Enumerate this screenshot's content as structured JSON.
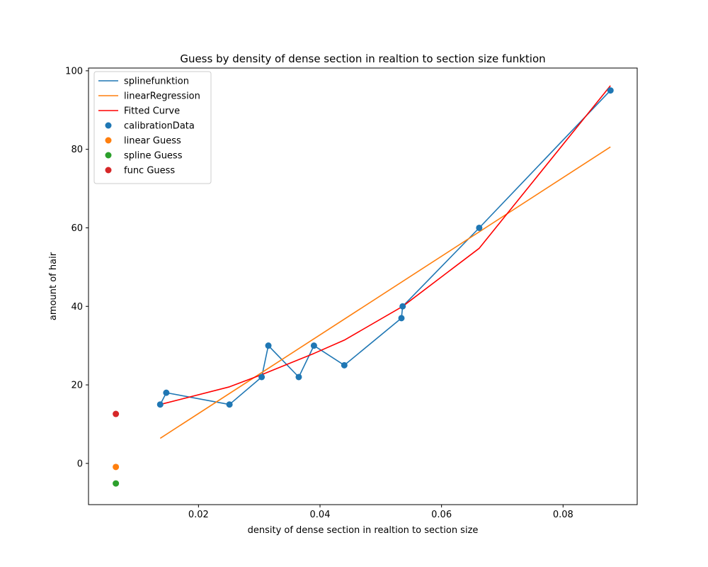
{
  "chart_data": {
    "type": "line",
    "title": "Guess by density of dense section in realtion to section size funktion",
    "xlabel": "density of dense section in realtion to section size",
    "ylabel": "amount of hair",
    "xlim": [
      0.0019,
      0.0922
    ],
    "ylim": [
      -10.5,
      100.7
    ],
    "xticks": [
      0.02,
      0.04,
      0.06,
      0.08
    ],
    "xtick_labels": [
      "0.02",
      "0.04",
      "0.06",
      "0.08"
    ],
    "yticks": [
      0,
      20,
      40,
      60,
      80,
      100
    ],
    "ytick_labels": [
      "0",
      "20",
      "40",
      "60",
      "80",
      "100"
    ],
    "grid": false,
    "legend_position": "top-left",
    "series": [
      {
        "name": "splinefunktion",
        "kind": "line",
        "color": "#1f77b4",
        "x": [
          0.0137,
          0.0147,
          0.0251,
          0.0304,
          0.0315,
          0.0365,
          0.039,
          0.044,
          0.0534,
          0.0536,
          0.0662,
          0.0878
        ],
        "y": [
          15,
          18,
          15,
          22,
          30,
          22,
          30,
          25,
          37,
          40,
          60,
          95
        ]
      },
      {
        "name": "linearRegression",
        "kind": "line",
        "color": "#ff7f0e",
        "x": [
          0.0137,
          0.0878
        ],
        "y": [
          6.4,
          80.6
        ]
      },
      {
        "name": "Fitted Curve",
        "kind": "line",
        "color": "#ff0000",
        "x": [
          0.0137,
          0.0251,
          0.0304,
          0.039,
          0.044,
          0.0536,
          0.0662,
          0.0878
        ],
        "y": [
          15.0,
          19.5,
          22.6,
          28.0,
          31.4,
          40.0,
          54.8,
          96.2
        ]
      },
      {
        "name": "calibrationData",
        "kind": "scatter",
        "color": "#1f77b4",
        "x": [
          0.0137,
          0.0147,
          0.0251,
          0.0304,
          0.0315,
          0.0365,
          0.039,
          0.044,
          0.0534,
          0.0536,
          0.0662,
          0.0878
        ],
        "y": [
          15,
          18,
          15,
          22,
          30,
          22,
          30,
          25,
          37,
          40,
          60,
          95
        ]
      },
      {
        "name": "linear Guess",
        "kind": "scatter",
        "color": "#ff7f0e",
        "x": [
          0.0064
        ],
        "y": [
          -0.9
        ]
      },
      {
        "name": "spline Guess",
        "kind": "scatter",
        "color": "#2ca02c",
        "x": [
          0.0064
        ],
        "y": [
          -5.1
        ]
      },
      {
        "name": "func Guess",
        "kind": "scatter",
        "color": "#d62728",
        "x": [
          0.0064
        ],
        "y": [
          12.6
        ]
      }
    ]
  }
}
